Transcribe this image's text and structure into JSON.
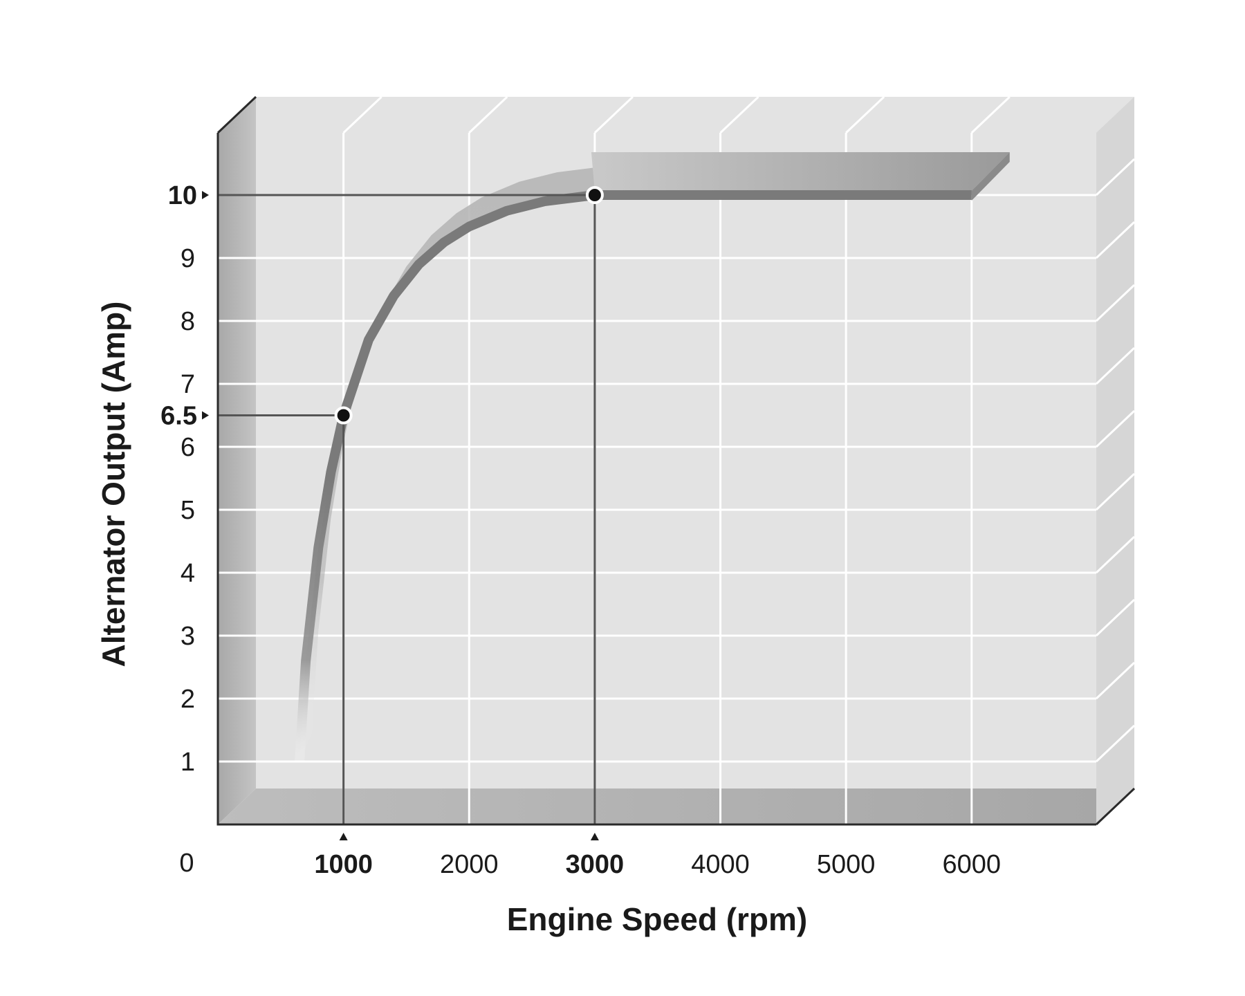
{
  "chart_data": {
    "type": "line",
    "title": "",
    "xlabel": "Engine Speed (rpm)",
    "ylabel": "Alternator Output (Amp)",
    "xlim": [
      0,
      7000
    ],
    "ylim": [
      0,
      11
    ],
    "grid": true,
    "origin_label": "0",
    "x_ticks": [
      {
        "value": 1000,
        "label": "1000",
        "emphasis": true
      },
      {
        "value": 2000,
        "label": "2000",
        "emphasis": false
      },
      {
        "value": 3000,
        "label": "3000",
        "emphasis": true
      },
      {
        "value": 4000,
        "label": "4000",
        "emphasis": false
      },
      {
        "value": 5000,
        "label": "5000",
        "emphasis": false
      },
      {
        "value": 6000,
        "label": "6000",
        "emphasis": false
      }
    ],
    "y_ticks": [
      {
        "value": 1,
        "label": "1",
        "emphasis": false
      },
      {
        "value": 2,
        "label": "2",
        "emphasis": false
      },
      {
        "value": 3,
        "label": "3",
        "emphasis": false
      },
      {
        "value": 4,
        "label": "4",
        "emphasis": false
      },
      {
        "value": 5,
        "label": "5",
        "emphasis": false
      },
      {
        "value": 6,
        "label": "6",
        "emphasis": false
      },
      {
        "value": 6.5,
        "label": "6.5",
        "emphasis": true
      },
      {
        "value": 7,
        "label": "7",
        "emphasis": false
      },
      {
        "value": 8,
        "label": "8",
        "emphasis": false
      },
      {
        "value": 9,
        "label": "9",
        "emphasis": false
      },
      {
        "value": 10,
        "label": "10",
        "emphasis": true
      }
    ],
    "series": [
      {
        "x": [
          650,
          700,
          800,
          900,
          1000,
          1200,
          1400,
          1600,
          1800,
          2000,
          2300,
          2600,
          3000,
          3500,
          4000,
          5000,
          6000
        ],
        "y": [
          1,
          2.6,
          4.4,
          5.6,
          6.5,
          7.7,
          8.4,
          8.9,
          9.25,
          9.5,
          9.75,
          9.9,
          10,
          10,
          10,
          10,
          10
        ]
      }
    ],
    "highlight_points": [
      {
        "x": 1000,
        "y": 6.5
      },
      {
        "x": 3000,
        "y": 10
      }
    ],
    "colors": {
      "curve": "#7a7a7a",
      "curve_band": "#b9b9b9",
      "grid": "#ffffff",
      "back_wall": "#e3e3e3",
      "left_wall": "#b4b4b4",
      "floor": "#aaaaaa",
      "right_wall": "#d6d6d6",
      "top_face": "#ececec",
      "marker": "#111111",
      "guide": "#555555"
    }
  }
}
